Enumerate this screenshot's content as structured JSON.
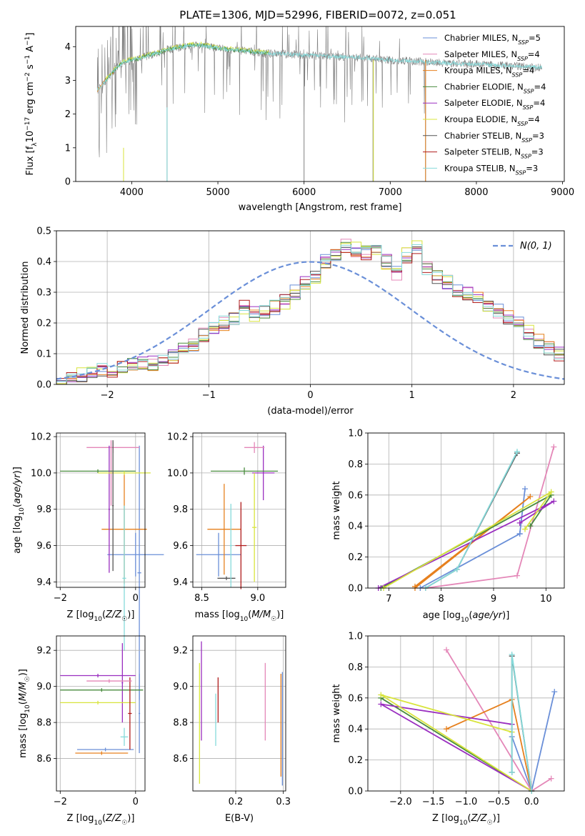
{
  "title": "PLATE=1306, MJD=52996, FIBERID=0072, z=0.051",
  "colors": {
    "chabrier_miles": "#6a8fd8",
    "salpeter_miles": "#e487b8",
    "kroupa_miles": "#e6801e",
    "chabrier_elodie": "#4a8c3f",
    "salpeter_elodie": "#9a2fc0",
    "kroupa_elodie": "#d8e43c",
    "chabrier_stelib": "#555555",
    "salpeter_stelib": "#b01c1c",
    "kroupa_stelib": "#86dada",
    "data": "#808080"
  },
  "chart_data": [
    {
      "type": "line",
      "id": "spectrum",
      "xlabel": "wavelength [Angstrom, rest frame]",
      "ylabel": "Flux [f_λ10^-17 erg cm^-2 s^-1 A^-1]",
      "xlim": [
        3350,
        9020
      ],
      "ylim": [
        0,
        4.6
      ],
      "xticks": [
        "4000",
        "5000",
        "6000",
        "7000",
        "8000",
        "9000"
      ],
      "yticks": [
        "0",
        "1",
        "2",
        "3",
        "4"
      ],
      "grid": false,
      "legend_position": "top-right",
      "legend": [
        {
          "name": "Chabrier MILES",
          "nssp": "5",
          "color": "#6a8fd8"
        },
        {
          "name": "Salpeter MILES",
          "nssp": "4",
          "color": "#e487b8"
        },
        {
          "name": "Kroupa MILES",
          "nssp": "4",
          "color": "#e6801e"
        },
        {
          "name": "Chabrier ELODIE",
          "nssp": "4",
          "color": "#4a8c3f"
        },
        {
          "name": "Salpeter ELODIE",
          "nssp": "4",
          "color": "#9a2fc0"
        },
        {
          "name": "Kroupa ELODIE",
          "nssp": "4",
          "color": "#d8e43c"
        },
        {
          "name": "Chabrier STELIB",
          "nssp": "3",
          "color": "#555555"
        },
        {
          "name": "Salpeter STELIB",
          "nssp": "3",
          "color": "#b01c1c"
        },
        {
          "name": "Kroupa STELIB",
          "nssp": "3",
          "color": "#86dada"
        }
      ],
      "continuum": {
        "x": [
          3600,
          3700,
          3800,
          3900,
          4000,
          4100,
          4200,
          4300,
          4400,
          4500,
          4600,
          4700,
          4800,
          4900,
          5000,
          5200,
          5400,
          5600,
          5800,
          6000,
          6200,
          6400,
          6600,
          6800,
          7000,
          7200,
          7400,
          7600,
          7800,
          8000,
          8200,
          8400,
          8600,
          8760
        ],
        "y": [
          2.7,
          3.0,
          3.3,
          3.55,
          3.6,
          3.65,
          3.75,
          3.8,
          3.9,
          3.95,
          4.0,
          4.05,
          4.05,
          4.0,
          3.95,
          3.9,
          3.85,
          3.8,
          3.78,
          3.75,
          3.72,
          3.7,
          3.68,
          3.65,
          3.6,
          3.58,
          3.55,
          3.52,
          3.5,
          3.48,
          3.45,
          3.43,
          3.4,
          3.38
        ]
      }
    },
    {
      "type": "line",
      "id": "residuals",
      "xlabel": "(data-model)/error",
      "ylabel": "Normed distribution",
      "xlim": [
        -2.5,
        2.5
      ],
      "ylim": [
        0,
        0.5
      ],
      "xticks": [
        "−2",
        "−1",
        "0",
        "1",
        "2"
      ],
      "yticks": [
        "0.0",
        "0.1",
        "0.2",
        "0.3",
        "0.4",
        "0.5"
      ],
      "grid": true,
      "legend_position": "top-right",
      "legend": [
        {
          "name": "N(0, 1)",
          "style": "dashed",
          "color": "#6a8fd8"
        }
      ],
      "bin_width": 0.1,
      "bin_start": -2.5,
      "histogram": [
        0.01,
        0.02,
        0.03,
        0.04,
        0.045,
        0.04,
        0.06,
        0.065,
        0.07,
        0.07,
        0.08,
        0.09,
        0.11,
        0.13,
        0.16,
        0.18,
        0.2,
        0.22,
        0.25,
        0.23,
        0.24,
        0.25,
        0.27,
        0.3,
        0.33,
        0.35,
        0.4,
        0.42,
        0.45,
        0.44,
        0.43,
        0.44,
        0.4,
        0.36,
        0.42,
        0.45,
        0.38,
        0.35,
        0.33,
        0.31,
        0.3,
        0.28,
        0.26,
        0.24,
        0.22,
        0.2,
        0.17,
        0.14,
        0.12,
        0.1,
        0.09,
        0.07,
        0.06,
        0.05,
        0.04,
        0.035,
        0.03,
        0.025,
        0.02,
        0.015,
        0.01
      ]
    },
    {
      "type": "scatter",
      "id": "z_age",
      "xlabel": "Z [log10(Z/Z☉)]",
      "ylabel": "age  [log10(age/yr)]",
      "xlim": [
        -2.1,
        0.25
      ],
      "ylim": [
        9.37,
        10.22
      ],
      "xticks": [
        "−2",
        "0"
      ],
      "yticks": [
        "9.4",
        "9.6",
        "9.8",
        "10.0",
        "10.2"
      ],
      "grid": true,
      "crosses": [
        {
          "x": 0.0,
          "y": 9.55,
          "xerr": 0.75,
          "yerr": 0.12,
          "color": "#6a8fd8"
        },
        {
          "x": 0.1,
          "y": 9.45,
          "xerr": 0.05,
          "yerr": 0.7,
          "color": "#6a8fd8"
        },
        {
          "x": -0.6,
          "y": 10.14,
          "xerr": 0.7,
          "yerr": 0.03,
          "color": "#e487b8"
        },
        {
          "x": -0.65,
          "y": 10.0,
          "xerr": 0.05,
          "yerr": 0.18,
          "color": "#e487b8"
        },
        {
          "x": -0.3,
          "y": 9.69,
          "xerr": 0.6,
          "yerr": 0.3,
          "color": "#e6801e"
        },
        {
          "x": -1.0,
          "y": 10.01,
          "xerr": 1.0,
          "yerr": 0.01,
          "color": "#4a8c3f"
        },
        {
          "x": -0.7,
          "y": 9.8,
          "xerr": 0.02,
          "yerr": 0.35,
          "color": "#9a2fc0"
        },
        {
          "x": -0.3,
          "y": 10.0,
          "xerr": 0.7,
          "yerr": 0.01,
          "color": "#d8e43c"
        },
        {
          "x": -0.6,
          "y": 9.82,
          "xerr": 0.02,
          "yerr": 0.36,
          "color": "#555555"
        },
        {
          "x": -0.3,
          "y": 9.42,
          "xerr": 0.05,
          "yerr": 0.4,
          "color": "#86dada"
        }
      ]
    },
    {
      "type": "scatter",
      "id": "mass_age",
      "xlabel": "mass [log10(M/M☉)]",
      "ylabel": "",
      "xlim": [
        8.42,
        9.25
      ],
      "ylim": [
        9.37,
        10.22
      ],
      "xticks": [
        "8.5",
        "9.0"
      ],
      "yticks": [
        "9.4",
        "9.6",
        "9.8",
        "10.0",
        "10.2"
      ],
      "grid": true,
      "crosses": [
        {
          "x": 8.65,
          "y": 9.55,
          "xerr": 0.2,
          "yerr": 0.12,
          "color": "#6a8fd8"
        },
        {
          "x": 9.05,
          "y": 10.0,
          "xerr": 0.1,
          "yerr": 0.15,
          "color": "#9a2fc0"
        },
        {
          "x": 8.97,
          "y": 10.14,
          "xerr": 0.09,
          "yerr": 0.03,
          "color": "#e487b8"
        },
        {
          "x": 8.7,
          "y": 9.69,
          "xerr": 0.15,
          "yerr": 0.25,
          "color": "#e6801e"
        },
        {
          "x": 8.88,
          "y": 10.01,
          "xerr": 0.3,
          "yerr": 0.02,
          "color": "#4a8c3f"
        },
        {
          "x": 8.97,
          "y": 9.7,
          "xerr": 0.02,
          "yerr": 0.3,
          "color": "#d8e43c"
        },
        {
          "x": 8.85,
          "y": 9.6,
          "xerr": 0.05,
          "yerr": 0.24,
          "color": "#b01c1c"
        },
        {
          "x": 8.72,
          "y": 9.42,
          "xerr": 0.08,
          "yerr": 0.01,
          "color": "#555555"
        },
        {
          "x": 8.76,
          "y": 9.6,
          "xerr": 0.01,
          "yerr": 0.23,
          "color": "#86dada"
        }
      ]
    },
    {
      "type": "line",
      "id": "age_weight",
      "xlabel": "age  [log10(age/yr)]",
      "ylabel": "mass weight",
      "xlim": [
        6.6,
        10.35
      ],
      "ylim": [
        0,
        1.0
      ],
      "xticks": [
        "7",
        "8",
        "9",
        "10"
      ],
      "yticks": [
        "0.0",
        "0.2",
        "0.4",
        "0.6",
        "0.8",
        "1.0"
      ],
      "grid": true,
      "series": [
        {
          "x": [
            7.6,
            9.5,
            9.6,
            9.5
          ],
          "y": [
            0.0,
            0.35,
            0.64,
            0.35
          ],
          "color": "#6a8fd8"
        },
        {
          "x": [
            7.7,
            9.45,
            10.15
          ],
          "y": [
            0.0,
            0.08,
            0.91
          ],
          "color": "#e487b8"
        },
        {
          "x": [
            7.5,
            9.7,
            7.5
          ],
          "y": [
            0.01,
            0.59,
            0.0
          ],
          "color": "#e6801e"
        },
        {
          "x": [
            6.85,
            10.1,
            9.7
          ],
          "y": [
            0.0,
            0.6,
            0.4
          ],
          "color": "#4a8c3f"
        },
        {
          "x": [
            6.8,
            10.15,
            9.5
          ],
          "y": [
            0.0,
            0.56,
            0.42
          ],
          "color": "#9a2fc0"
        },
        {
          "x": [
            6.9,
            10.1,
            9.6
          ],
          "y": [
            0.0,
            0.62,
            0.38
          ],
          "color": "#d8e43c"
        },
        {
          "x": [
            7.7,
            8.3,
            9.45
          ],
          "y": [
            0.0,
            0.12,
            0.87
          ],
          "color": "#555555"
        },
        {
          "x": [
            7.7,
            8.3,
            9.45
          ],
          "y": [
            0.0,
            0.12,
            0.88
          ],
          "color": "#86dada"
        }
      ]
    },
    {
      "type": "scatter",
      "id": "z_mass",
      "xlabel": "Z [log10(Z/Z☉)]",
      "ylabel": "mass [log10(M/M☉)]",
      "xlim": [
        -2.1,
        0.25
      ],
      "ylim": [
        8.42,
        9.28
      ],
      "xticks": [
        "−2",
        "0"
      ],
      "yticks": [
        "8.6",
        "8.8",
        "9.0",
        "9.2"
      ],
      "grid": true,
      "crosses": [
        {
          "x": -0.8,
          "y": 8.65,
          "xerr": 0.75,
          "yerr": 0.01,
          "color": "#6a8fd8"
        },
        {
          "x": 0.1,
          "y": 8.85,
          "xerr": 0.02,
          "yerr": 0.22,
          "color": "#6a8fd8"
        },
        {
          "x": -0.9,
          "y": 8.63,
          "xerr": 0.7,
          "yerr": 0.01,
          "color": "#e6801e"
        },
        {
          "x": -1.0,
          "y": 9.06,
          "xerr": 1.0,
          "yerr": 0.01,
          "color": "#9a2fc0"
        },
        {
          "x": -0.35,
          "y": 9.02,
          "xerr": 0.02,
          "yerr": 0.22,
          "color": "#9a2fc0"
        },
        {
          "x": -0.9,
          "y": 8.98,
          "xerr": 1.1,
          "yerr": 0.01,
          "color": "#4a8c3f"
        },
        {
          "x": -1.0,
          "y": 8.91,
          "xerr": 1.0,
          "yerr": 0.01,
          "color": "#d8e43c"
        },
        {
          "x": -0.15,
          "y": 8.85,
          "xerr": 0.05,
          "yerr": 0.2,
          "color": "#b01c1c"
        },
        {
          "x": -0.3,
          "y": 8.72,
          "xerr": 0.1,
          "yerr": 0.05,
          "color": "#86dada"
        },
        {
          "x": -0.7,
          "y": 9.03,
          "xerr": 0.6,
          "yerr": 0.01,
          "color": "#e487b8"
        }
      ]
    },
    {
      "type": "scatter",
      "id": "ebv_mass",
      "xlabel": "E(B-V)",
      "ylabel": "",
      "xlim": [
        0.11,
        0.305
      ],
      "ylim": [
        8.42,
        9.28
      ],
      "xticks": [
        "0.2",
        "0.3"
      ],
      "yticks": [
        "8.6",
        "8.8",
        "9.0",
        "9.2"
      ],
      "grid": true,
      "verticals": [
        {
          "x": 0.124,
          "y0": 8.46,
          "y1": 9.13,
          "color": "#d8e43c"
        },
        {
          "x": 0.128,
          "y0": 8.7,
          "y1": 9.25,
          "color": "#9a2fc0"
        },
        {
          "x": 0.158,
          "y0": 8.67,
          "y1": 8.96,
          "color": "#86dada"
        },
        {
          "x": 0.163,
          "y0": 8.8,
          "y1": 9.05,
          "color": "#b01c1c"
        },
        {
          "x": 0.262,
          "y0": 8.7,
          "y1": 9.13,
          "color": "#e487b8"
        },
        {
          "x": 0.295,
          "y0": 8.5,
          "y1": 9.07,
          "color": "#e6801e"
        },
        {
          "x": 0.298,
          "y0": 8.45,
          "y1": 9.08,
          "color": "#6a8fd8"
        }
      ]
    },
    {
      "type": "line",
      "id": "z_weight",
      "xlabel": "Z [log10(Z/Z☉)]",
      "ylabel": "mass weight",
      "xlim": [
        -2.5,
        0.5
      ],
      "ylim": [
        0,
        1.0
      ],
      "xticks": [
        "−2.0",
        "−1.5",
        "−1.0",
        "−0.5",
        "0.0"
      ],
      "yticks": [
        "0.0",
        "0.2",
        "0.4",
        "0.6",
        "0.8",
        "1.0"
      ],
      "grid": true,
      "series": [
        {
          "x": [
            0.0,
            0.35,
            0.0,
            -0.3
          ],
          "y": [
            0.0,
            0.64,
            0.0,
            0.35
          ],
          "color": "#6a8fd8"
        },
        {
          "x": [
            0.0,
            -1.3,
            0.0,
            0.3
          ],
          "y": [
            0.0,
            0.91,
            0.0,
            0.08
          ],
          "color": "#e487b8"
        },
        {
          "x": [
            0.0,
            -0.3,
            -1.3
          ],
          "y": [
            0.0,
            0.59,
            0.4
          ],
          "color": "#e6801e"
        },
        {
          "x": [
            0.0,
            -2.3,
            0.0
          ],
          "y": [
            0.0,
            0.6,
            0.0
          ],
          "color": "#4a8c3f"
        },
        {
          "x": [
            0.0,
            -2.3,
            -0.3
          ],
          "y": [
            0.0,
            0.56,
            0.43
          ],
          "color": "#9a2fc0"
        },
        {
          "x": [
            0.0,
            -2.3,
            -0.3
          ],
          "y": [
            0.0,
            0.62,
            0.38
          ],
          "color": "#d8e43c"
        },
        {
          "x": [
            0.0,
            -0.3,
            -0.3
          ],
          "y": [
            0.0,
            0.87,
            0.12
          ],
          "color": "#555555"
        },
        {
          "x": [
            0.0,
            -0.3,
            -0.3
          ],
          "y": [
            0.0,
            0.88,
            0.12
          ],
          "color": "#86dada"
        }
      ]
    }
  ]
}
